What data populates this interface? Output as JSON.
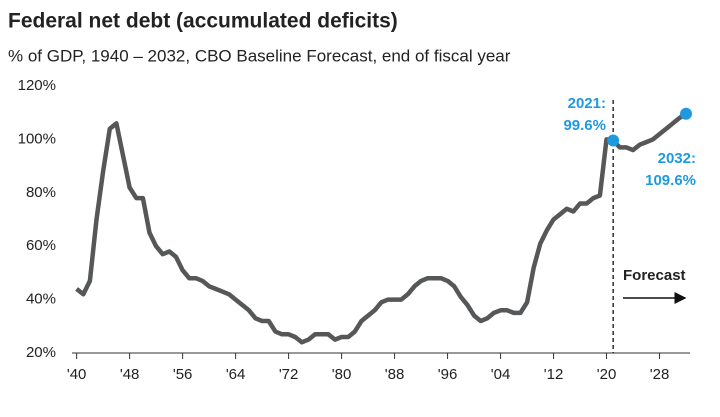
{
  "chart_data": {
    "type": "line",
    "title": "Federal net debt (accumulated deficits)",
    "subtitle": "% of GDP, 1940 – 2032, CBO Baseline Forecast, end of fiscal year",
    "x": [
      1940,
      1941,
      1942,
      1943,
      1944,
      1945,
      1946,
      1947,
      1948,
      1949,
      1950,
      1951,
      1952,
      1953,
      1954,
      1955,
      1956,
      1957,
      1958,
      1959,
      1960,
      1961,
      1962,
      1963,
      1964,
      1965,
      1966,
      1967,
      1968,
      1969,
      1970,
      1971,
      1972,
      1973,
      1974,
      1975,
      1976,
      1977,
      1978,
      1979,
      1980,
      1981,
      1982,
      1983,
      1984,
      1985,
      1986,
      1987,
      1988,
      1989,
      1990,
      1991,
      1992,
      1993,
      1994,
      1995,
      1996,
      1997,
      1998,
      1999,
      2000,
      2001,
      2002,
      2003,
      2004,
      2005,
      2006,
      2007,
      2008,
      2009,
      2010,
      2011,
      2012,
      2013,
      2014,
      2015,
      2016,
      2017,
      2018,
      2019,
      2020,
      2021,
      2022,
      2023,
      2024,
      2025,
      2026,
      2027,
      2028,
      2029,
      2030,
      2031,
      2032
    ],
    "series": [
      {
        "color": "#555759",
        "values": [
          44,
          42,
          47,
          70,
          88,
          104,
          106,
          94,
          82,
          78,
          78,
          65,
          60,
          57,
          58,
          56,
          51,
          48,
          48,
          47,
          45,
          44,
          43,
          42,
          40,
          38,
          36,
          33,
          32,
          32,
          28,
          27,
          27,
          26,
          24,
          25,
          27,
          27,
          27,
          25,
          26,
          26,
          28,
          32,
          34,
          36,
          39,
          40,
          40,
          40,
          42,
          45,
          47,
          48,
          48,
          48,
          47,
          45,
          41,
          38,
          34,
          32,
          33,
          35,
          36,
          36,
          35,
          35,
          39,
          52,
          61,
          66,
          70,
          72,
          74,
          73,
          76,
          76,
          78,
          79,
          100,
          99.6,
          97,
          97,
          96,
          98,
          99,
          100,
          102,
          104,
          106,
          108,
          109.6
        ]
      }
    ],
    "highlight_color": "#1f9ae0",
    "annotations": [
      "2021:",
      "99.6%",
      "2032:",
      "109.6%",
      "Forecast"
    ],
    "forecast_start": 2021,
    "xlim": [
      1939.3,
      2032.6
    ],
    "xticks": [
      {
        "value": 1940,
        "label": "'40"
      },
      {
        "value": 1948,
        "label": "'48"
      },
      {
        "value": 1956,
        "label": "'56"
      },
      {
        "value": 1964,
        "label": "'64"
      },
      {
        "value": 1972,
        "label": "'72"
      },
      {
        "value": 1980,
        "label": "'80"
      },
      {
        "value": 1988,
        "label": "'88"
      },
      {
        "value": 1996,
        "label": "'96"
      },
      {
        "value": 2004,
        "label": "'04"
      },
      {
        "value": 2012,
        "label": "'12"
      },
      {
        "value": 2020,
        "label": "'20"
      },
      {
        "value": 2028,
        "label": "'28"
      }
    ],
    "ylim": [
      20,
      120
    ],
    "yticks": [
      {
        "value": 20,
        "label": "20%"
      },
      {
        "value": 40,
        "label": "40%"
      },
      {
        "value": 60,
        "label": "60%"
      },
      {
        "value": 80,
        "label": "80%"
      },
      {
        "value": 100,
        "label": "100%"
      },
      {
        "value": 120,
        "label": "120%"
      }
    ],
    "grid": false
  }
}
